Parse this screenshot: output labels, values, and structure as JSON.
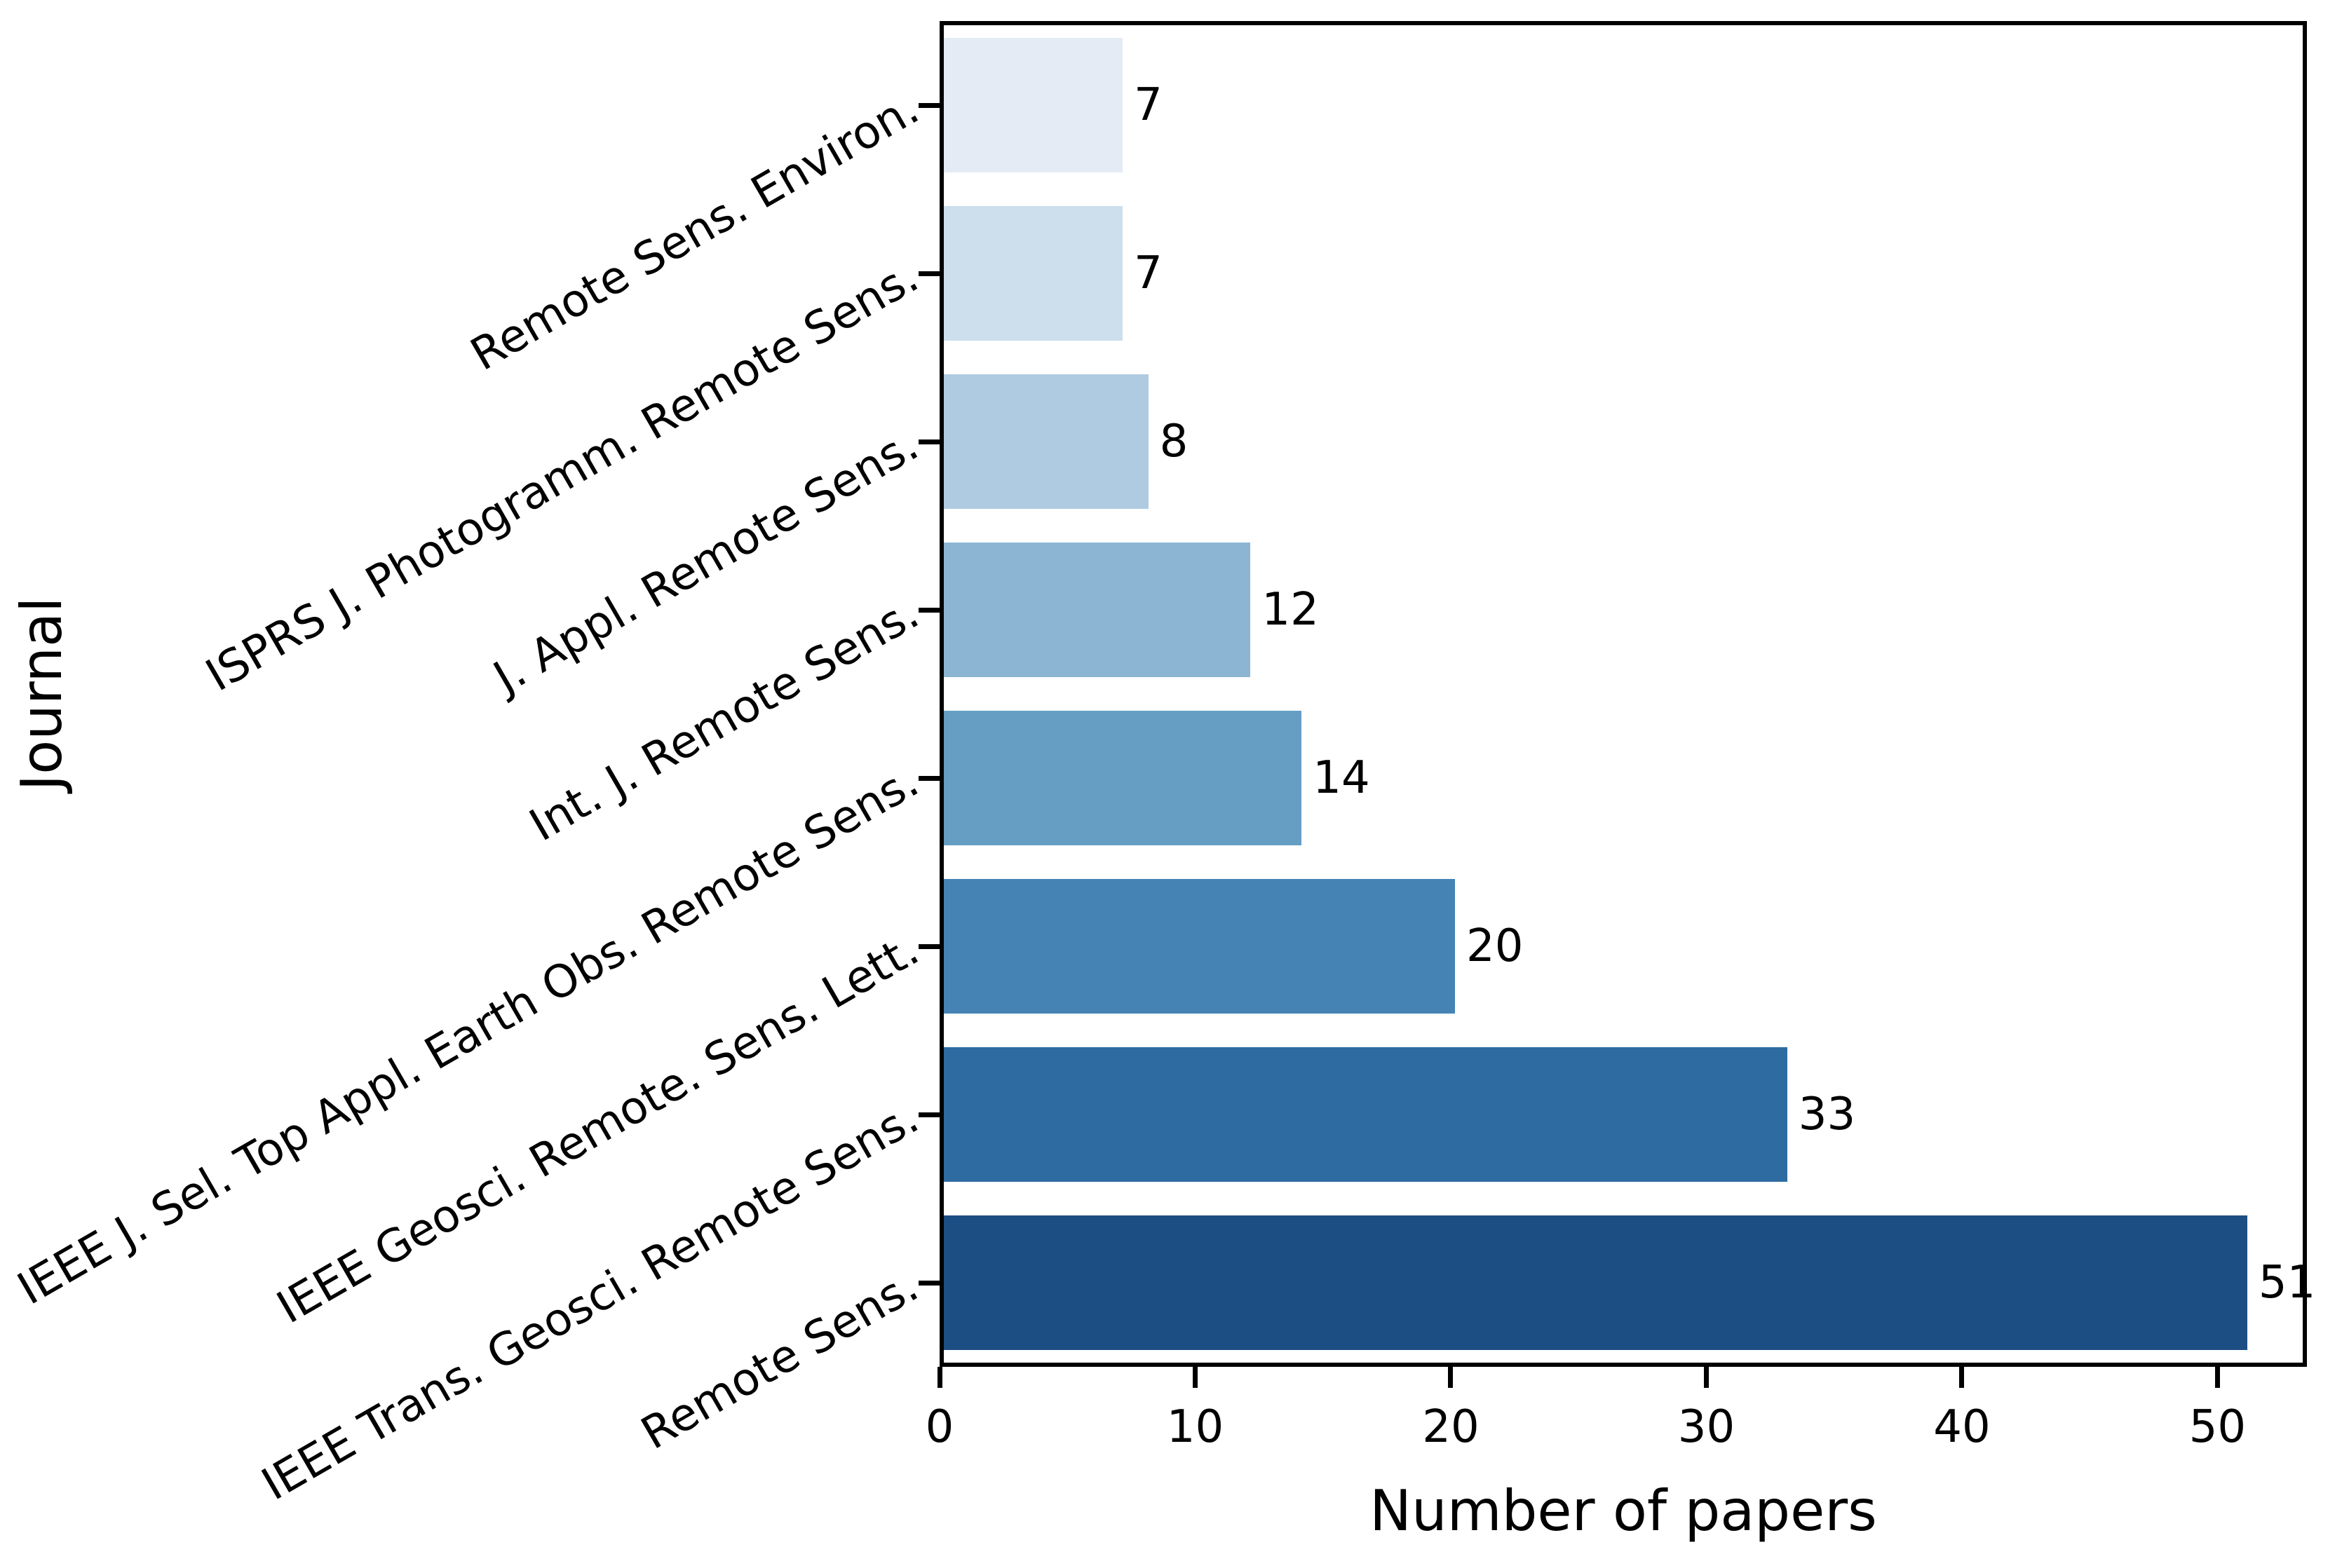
{
  "chart_data": {
    "type": "bar",
    "orientation": "horizontal",
    "title": "",
    "xlabel": "Number of papers",
    "ylabel": "Journal",
    "categories": [
      "Remote Sens. Environ.",
      "ISPRS J. Photogramm. Remote Sens.",
      "J. Appl. Remote Sens.",
      "Int. J. Remote Sens.",
      "IEEE J. Sel. Top Appl. Earth Obs. Remote Sens.",
      "IEEE Geosci. Remote. Sens. Lett.",
      "IEEE Trans. Geosci. Remote Sens.",
      "Remote Sens."
    ],
    "values": [
      7,
      7,
      8,
      12,
      14,
      20,
      33,
      51
    ],
    "bar_colors": [
      "#e4ebf5",
      "#cddeec",
      "#afcbe1",
      "#8cb5d3",
      "#669dc3",
      "#4583b5",
      "#2d6ba0",
      "#1c4e84"
    ],
    "xticks": [
      0,
      10,
      20,
      30,
      40,
      50
    ],
    "xlim": [
      0,
      53.5
    ],
    "grid": false,
    "legend_position": "none",
    "value_labels_shown": true,
    "ytick_label_rotation_deg": 30
  },
  "colors": {
    "axis": "#000000",
    "text": "#000000",
    "background": "#ffffff"
  }
}
